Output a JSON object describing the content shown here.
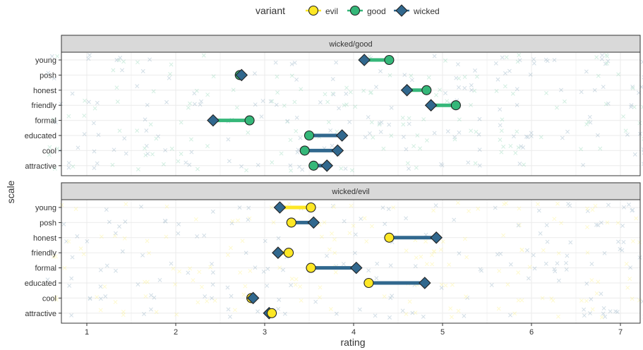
{
  "chart_data": {
    "type": "scatter",
    "xlabel": "rating",
    "ylabel": "scale",
    "xlim": [
      0.7,
      7.25
    ],
    "xticks": [
      "1",
      "2",
      "3",
      "4",
      "5",
      "6",
      "7"
    ],
    "grid": true,
    "legend": {
      "title": "variant",
      "position": "top",
      "entries": [
        "evil",
        "good",
        "wicked"
      ]
    },
    "colors": {
      "evil": "#fde725",
      "good": "#35b779",
      "wicked": "#31688e"
    },
    "categories": [
      "young",
      "posh",
      "honest",
      "friendly",
      "formal",
      "educated",
      "cool",
      "attractive"
    ],
    "panels": [
      {
        "strip": "wicked/good",
        "compare_variant": "good",
        "rows": [
          {
            "scale": "young",
            "wicked": 4.12,
            "compare": 4.4
          },
          {
            "scale": "posh",
            "wicked": 2.74,
            "compare": 2.72
          },
          {
            "scale": "honest",
            "wicked": 4.6,
            "compare": 4.82
          },
          {
            "scale": "friendly",
            "wicked": 4.87,
            "compare": 5.15
          },
          {
            "scale": "formal",
            "wicked": 2.42,
            "compare": 2.83
          },
          {
            "scale": "educated",
            "wicked": 3.87,
            "compare": 3.5
          },
          {
            "scale": "cool",
            "wicked": 3.82,
            "compare": 3.45
          },
          {
            "scale": "attractive",
            "wicked": 3.7,
            "compare": 3.55
          }
        ]
      },
      {
        "strip": "wicked/evil",
        "compare_variant": "evil",
        "rows": [
          {
            "scale": "young",
            "wicked": 3.17,
            "compare": 3.52
          },
          {
            "scale": "posh",
            "wicked": 3.55,
            "compare": 3.3
          },
          {
            "scale": "honest",
            "wicked": 4.93,
            "compare": 4.4
          },
          {
            "scale": "friendly",
            "wicked": 3.15,
            "compare": 3.27
          },
          {
            "scale": "formal",
            "wicked": 4.03,
            "compare": 3.52
          },
          {
            "scale": "educated",
            "wicked": 4.8,
            "compare": 4.17
          },
          {
            "scale": "cool",
            "wicked": 2.87,
            "compare": 2.85
          },
          {
            "scale": "attractive",
            "wicked": 3.05,
            "compare": 3.08
          }
        ]
      }
    ]
  }
}
